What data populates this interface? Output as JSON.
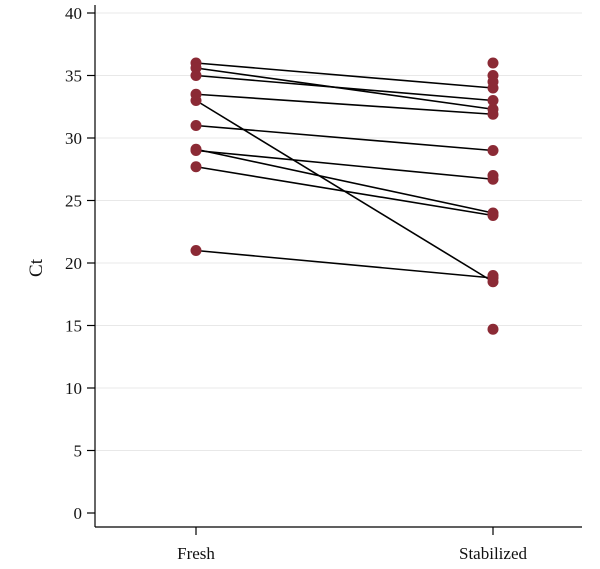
{
  "chart_data": {
    "type": "scatter",
    "title": "",
    "xlabel": "",
    "ylabel": "Ct",
    "categories": [
      "Fresh",
      "Stabilized"
    ],
    "ylim": [
      0,
      40
    ],
    "yticks": [
      0,
      5,
      10,
      15,
      20,
      25,
      30,
      35,
      40
    ],
    "grid": true,
    "point_color": "#8b2a35",
    "line_color": "#000000",
    "pairs": [
      {
        "fresh": 36.0,
        "stabilized": 34.0
      },
      {
        "fresh": 35.6,
        "stabilized": 32.3
      },
      {
        "fresh": 35.0,
        "stabilized": 33.0
      },
      {
        "fresh": 33.5,
        "stabilized": 31.9
      },
      {
        "fresh": 33.0,
        "stabilized": 18.5
      },
      {
        "fresh": 31.0,
        "stabilized": 29.0
      },
      {
        "fresh": 29.1,
        "stabilized": 24.0
      },
      {
        "fresh": 29.0,
        "stabilized": 26.7
      },
      {
        "fresh": 27.7,
        "stabilized": 23.8
      },
      {
        "fresh": 21.0,
        "stabilized": 18.8
      }
    ],
    "unpaired_stabilized": [
      36.0,
      35.0,
      34.5,
      27.0,
      19.0,
      14.7
    ]
  }
}
